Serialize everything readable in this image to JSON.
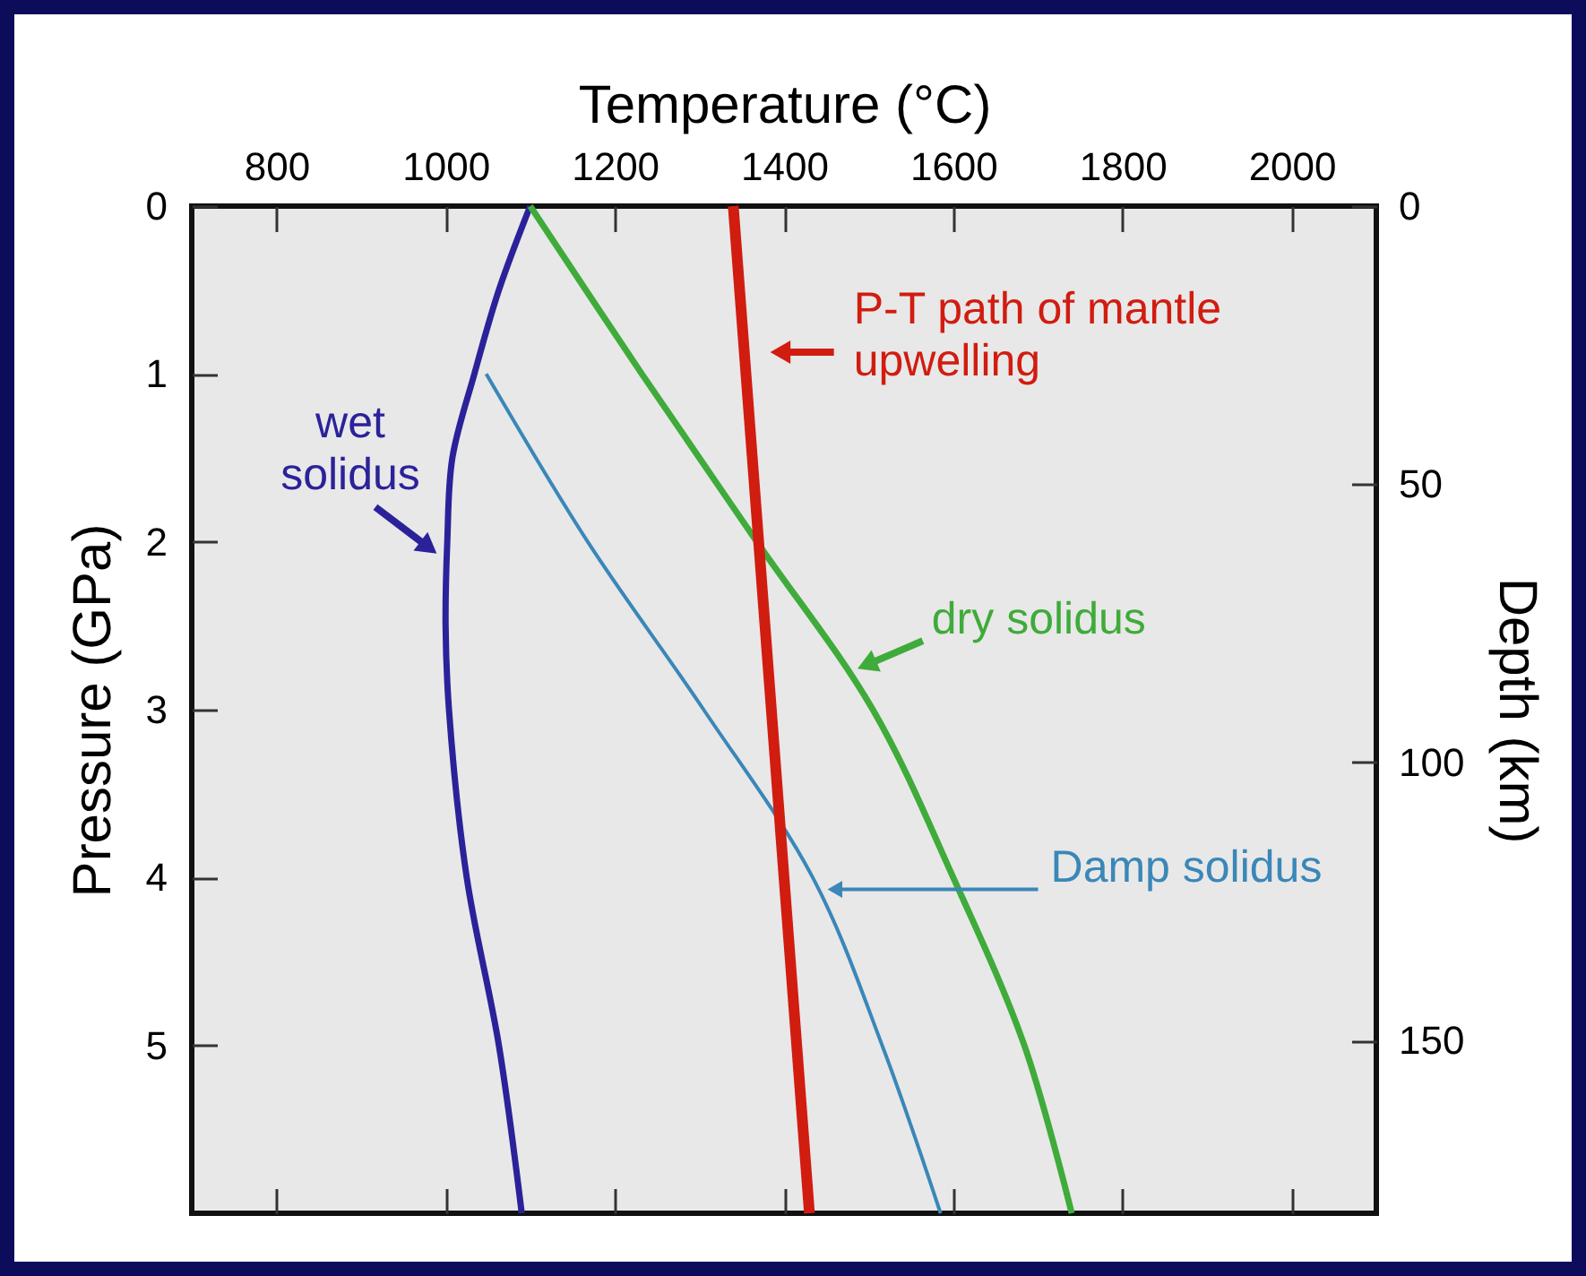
{
  "chart_data": {
    "type": "line",
    "xlabel": "Temperature (°C)",
    "ylabel": "Pressure (GPa)",
    "y2label": "Depth (km)",
    "xlim": [
      700,
      2100
    ],
    "xticks": [
      800,
      1000,
      1200,
      1400,
      1600,
      1800,
      2000
    ],
    "ylim": [
      6,
      0
    ],
    "yticks": [
      0,
      1,
      2,
      3,
      4,
      5
    ],
    "y2lim": [
      181,
      0
    ],
    "y2ticks": [
      0,
      50,
      100,
      150
    ],
    "grid": false,
    "legend": "top right",
    "marker": "none",
    "line_style": "solid",
    "series": [
      {
        "name": "wet solidus",
        "color": "#2b229a",
        "x": [
          1100,
          1063,
          1034,
          1008,
          1002,
          1000,
          1004,
          1025,
          1063,
          1090
        ],
        "values": [
          0,
          0.5,
          1,
          1.5,
          2,
          2.5,
          3,
          4,
          5,
          6
        ]
      },
      {
        "name": "dry solidus",
        "color": "#3fab3a",
        "x": [
          1100,
          1232,
          1368,
          1505,
          1600,
          1684,
          1740
        ],
        "values": [
          0,
          1,
          2,
          3,
          4,
          5,
          6
        ]
      },
      {
        "name": "Damp solidus",
        "color": "#3a87b8",
        "x": [
          1048,
          1168,
          1305,
          1434,
          1516,
          1585
        ],
        "values": [
          1,
          2,
          3,
          4,
          5,
          6
        ]
      },
      {
        "name": "P-T path of mantle upwelling",
        "color": "#d11c10",
        "x": [
          1340,
          1430
        ],
        "values": [
          0,
          6
        ]
      }
    ]
  }
}
